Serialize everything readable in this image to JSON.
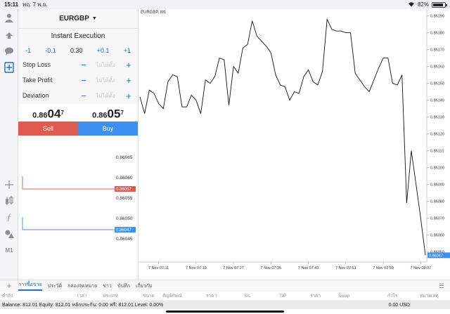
{
  "status": {
    "time": "15:11",
    "date": "พฤ. 7 พ.ย.",
    "battery": "82%",
    "battery_level": 0.82
  },
  "panel": {
    "symbol": "EURGBP",
    "execution": "Instant Execution",
    "volume": {
      "m1": "-1",
      "m01": "-0.1",
      "value": "0.30",
      "p01": "+0.1",
      "p1": "+1"
    },
    "stop_loss": {
      "label": "Stop Loss",
      "value": "ไม่ได้ตั้ง"
    },
    "take_profit": {
      "label": "Take Profit",
      "value": "ไม่ได้ตั้ง"
    },
    "deviation": {
      "label": "Deviation",
      "value": "ไม่ได้ตั้ง"
    },
    "bid": {
      "prefix": "0.86",
      "big": "04",
      "sup": "7"
    },
    "ask": {
      "prefix": "0.86",
      "big": "05",
      "sup": "7"
    },
    "sell_label": "Sell",
    "buy_label": "Buy"
  },
  "depth": {
    "levels": [
      "0.86065",
      "0.86060",
      "0.86055",
      "0.86050",
      "0.86045"
    ],
    "ask_tag": "0.86057",
    "bid_tag": "0.86047",
    "ask_color": "#e05a4f",
    "bid_color": "#3f8ff2"
  },
  "chart": {
    "title": "EURGBP, M1",
    "price_tag": "0.86047"
  },
  "chart_data": {
    "type": "line",
    "symbol": "EURGBP",
    "timeframe": "M1",
    "y_ticks": [
      "0.86190",
      "0.86180",
      "0.86170",
      "0.86160",
      "0.86150",
      "0.86140",
      "0.86130",
      "0.86120",
      "0.86110",
      "0.86100",
      "0.86090",
      "0.86080",
      "0.86070",
      "0.86060",
      "0.86050"
    ],
    "ylim": [
      0.86044,
      0.86194
    ],
    "x_ticks": [
      "7 Nov 07:11",
      "7 Nov 07:19",
      "7 Nov 07:27",
      "7 Nov 07:35",
      "7 Nov 07:43",
      "7 Nov 07:51",
      "7 Nov 07:59",
      "7 Nov 08:07"
    ],
    "x_tick_index": [
      4,
      12,
      20,
      28,
      36,
      44,
      52,
      60
    ],
    "values": [
      0.86142,
      0.86132,
      0.86146,
      0.86144,
      0.86138,
      0.86135,
      0.86151,
      0.86155,
      0.86154,
      0.86136,
      0.86136,
      0.86143,
      0.8614,
      0.86132,
      0.86152,
      0.8615,
      0.86154,
      0.86165,
      0.86164,
      0.86137,
      0.8616,
      0.86156,
      0.86171,
      0.86173,
      0.86187,
      0.86178,
      0.86175,
      0.86172,
      0.86168,
      0.86155,
      0.86149,
      0.86148,
      0.8614,
      0.86145,
      0.86144,
      0.86154,
      0.86158,
      0.86151,
      0.86149,
      0.86157,
      0.86188,
      0.86182,
      0.86181,
      0.86181,
      0.8618,
      0.8618,
      0.86156,
      0.86152,
      0.86148,
      0.86145,
      0.86152,
      0.86159,
      0.86165,
      0.86165,
      0.8615,
      0.86149,
      0.86155,
      0.86079,
      0.8611,
      0.8609,
      0.8607,
      0.86048
    ]
  },
  "tabs": [
    "การซื้อขาย",
    "ประวัติ",
    "กล่องจดหมาย",
    "ข่าว",
    "บันทึก",
    "เกี่ยวกับ"
  ],
  "columns": [
    "คำสั่ง",
    "เวลา",
    "ประเภท",
    "ขนาด",
    "สัญลักษณ์",
    "ราคา",
    "S/L",
    "T/P",
    "ราคา",
    "Swap",
    "กำไร",
    "หมายเหตุ"
  ],
  "balance": {
    "text": "Balance: 812.01 Equity: 812.01 หลักประกัน: 0.00 ฟรี: 812.01 Level: 0.00%",
    "profit": "0.00  USD"
  }
}
